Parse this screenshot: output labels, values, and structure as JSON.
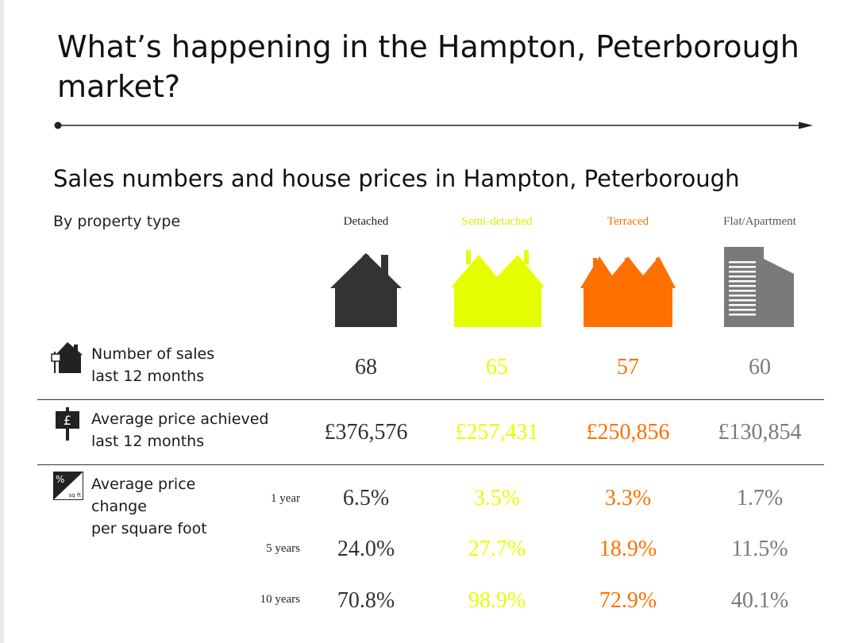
{
  "title": "What’s happening in the Hampton, Peterborough market?",
  "subtitle": "Sales numbers and house prices in Hampton, Peterborough",
  "by_property_type": "By property type",
  "colors": {
    "detached": "#333333",
    "semi": "#e5ff00",
    "terraced": "#ff7000",
    "flat": "#7a7a7a"
  },
  "columns": [
    {
      "label": "Detached",
      "icon": "detached-house-icon"
    },
    {
      "label": "Semi-detached",
      "icon": "semi-detached-house-icon"
    },
    {
      "label": "Terraced",
      "icon": "terraced-house-icon"
    },
    {
      "label": "Flat/Apartment",
      "icon": "flat-apartment-icon"
    }
  ],
  "rows": {
    "sales": {
      "icon": "house-for-sale-sign-icon",
      "label_line1": "Number of sales",
      "label_line2": "last 12 months",
      "values": [
        "68",
        "65",
        "57",
        "60"
      ]
    },
    "avg_price": {
      "icon": "pound-sign-icon",
      "label_line1": "Average price achieved",
      "label_line2": "last 12 months",
      "values": [
        "£376,576",
        "£257,431",
        "£250,856",
        "£130,854"
      ]
    },
    "price_change": {
      "icon": "percent-per-sq-ft-icon",
      "icon_text_top": "%",
      "icon_text_bottom": "sq ft",
      "label_line1": "Average price",
      "label_line2": "change",
      "label_line3": "per square foot",
      "periods": [
        {
          "label": "1 year",
          "values": [
            "6.5%",
            "3.5%",
            "3.3%",
            "1.7%"
          ]
        },
        {
          "label": "5 years",
          "values": [
            "24.0%",
            "27.7%",
            "18.9%",
            "11.5%"
          ]
        },
        {
          "label": "10 years",
          "values": [
            "70.8%",
            "98.9%",
            "72.9%",
            "40.1%"
          ]
        }
      ]
    }
  }
}
